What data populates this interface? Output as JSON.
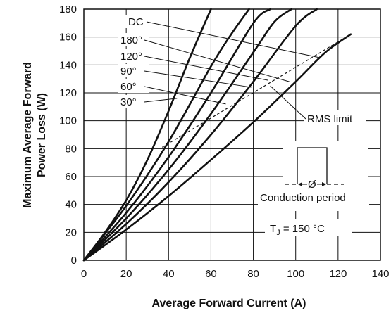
{
  "chart_data": {
    "type": "line",
    "title": "",
    "xlabel": "Average Forward Current (A)",
    "ylabel_line1": "Maximum Average Forward",
    "ylabel_line2": "Power Loss (W)",
    "xlim": [
      0,
      140
    ],
    "ylim": [
      0,
      180
    ],
    "xticks": [
      0,
      20,
      40,
      60,
      80,
      100,
      120,
      140
    ],
    "yticks": [
      0,
      20,
      40,
      60,
      80,
      100,
      120,
      140,
      160,
      180
    ],
    "grid": true,
    "line_color": "#111111",
    "series": [
      {
        "name": "DC",
        "x": [
          0,
          20,
          40,
          60,
          80,
          100,
          114,
          126
        ],
        "y": [
          0,
          22,
          46,
          72,
          99,
          128,
          149,
          162
        ]
      },
      {
        "name": "180°",
        "x": [
          0,
          20,
          40,
          60,
          80,
          100,
          110
        ],
        "y": [
          0,
          26,
          56,
          90,
          128,
          168,
          180
        ]
      },
      {
        "name": "120°",
        "x": [
          0,
          20,
          40,
          60,
          80,
          90,
          98
        ],
        "y": [
          0,
          30,
          65,
          105,
          149,
          171,
          180
        ]
      },
      {
        "name": "90°",
        "x": [
          0,
          20,
          40,
          60,
          80,
          88
        ],
        "y": [
          0,
          34,
          74,
          120,
          170,
          180
        ]
      },
      {
        "name": "60°",
        "x": [
          0,
          20,
          40,
          60,
          70,
          78
        ],
        "y": [
          0,
          39,
          85,
          139,
          163,
          180
        ]
      },
      {
        "name": "30°",
        "x": [
          0,
          10,
          20,
          30,
          40,
          50,
          60
        ],
        "y": [
          0,
          20,
          43,
          72,
          107,
          145,
          180
        ]
      }
    ],
    "rms_limit": {
      "label": "RMS limit",
      "x": [
        37,
        126
      ],
      "y": [
        81,
        162
      ]
    },
    "annotations": {
      "conduction_period": "Conduction period",
      "phi": "Ø",
      "tj_prefix": "T",
      "tj_sub": "J",
      "tj_suffix": " = 150 °C"
    }
  }
}
